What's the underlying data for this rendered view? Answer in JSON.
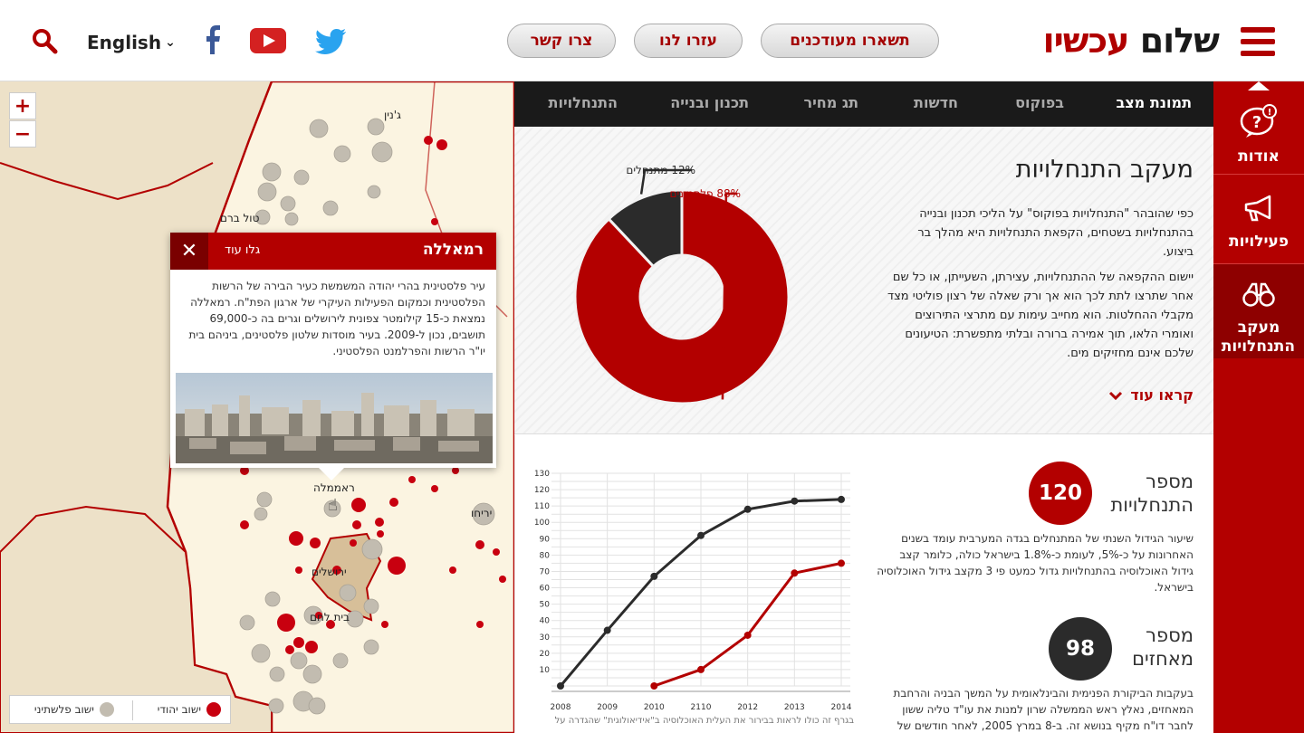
{
  "header": {
    "logo_part1": "שלום",
    "logo_part2": "עכשיו",
    "buttons": [
      "תשארו מעודכנים",
      "עזרו לנו",
      "צרו קשר"
    ],
    "language": "English",
    "icons": [
      "search-icon",
      "facebook-icon",
      "youtube-icon",
      "twitter-icon",
      "hamburger-menu-icon"
    ]
  },
  "tabs": {
    "items": [
      "תמונת מצב",
      "בפוקוס",
      "חדשות",
      "תג מחיר",
      "תכנון ובנייה",
      "התנחלויות"
    ],
    "active": "תמונת מצב"
  },
  "sidebar": {
    "items": [
      {
        "label": "אודות",
        "icon": "question-bubble-icon"
      },
      {
        "label": "פעילויות",
        "icon": "megaphone-icon"
      },
      {
        "label": "מעקב התנחלויות",
        "icon": "binoculars-icon"
      }
    ],
    "active": "מעקב התנחלויות"
  },
  "map": {
    "labels": {
      "jenin": "ג'נין",
      "tulkarm": "טול ברם",
      "jericho": "יריחו",
      "jerusalem": "ירושלים",
      "bethlehem": "בית לחם",
      "ramallah_marker": "ראממלה"
    },
    "popup": {
      "title": "רמאללה",
      "more": "גלו עוד",
      "text": "עיר פלסטינית בהרי יהודה המשמשת כעיר הבירה של הרשות הפלסטינית וכמקום הפעילות העיקרי של ארגון הפת\"ח. רמאללה נמצאת כ-15 קילומטר צפונית לירושלים וגרים בה כ-69,000 תושבים, נכון ל-2009. בעיר מוסדות שלטון פלסטינים, ביניהם בית יו\"ר הרשות והפרלמנט הפלסטיני."
    },
    "legend": {
      "jewish": "ישוב יהודי",
      "palestinian": "ישוב פלשתיני"
    },
    "colors": {
      "jewish": "#c8000f",
      "palestinian": "#c2bcb0"
    }
  },
  "overview": {
    "title": "מעקב התנחלויות",
    "paragraph1": "כפי שהובהר \"התנחלויות בפוקוס\" על הליכי תכנון ובנייה בהתנחלויות בשטחים, הקפאת התנחלויות היא מהלך בר ביצוע.",
    "paragraph2": "יישום ההקפאה של ההתנחלויות, עצירתן, השעייתן, או כל שם אחר שתרצו לתת לכך הוא אך ורק שאלה של רצון פוליטי מצד מקבלי ההחלטות. הוא מחייב עימות עם מתרצי התירוצים ואומרי הלאו, תוך אמירה ברורה ובלתי מתפשרת: הטיעונים שלכם אינם מחזיקים מים.",
    "read_more": "קראו עוד"
  },
  "stats": [
    {
      "title_line1": "מספר",
      "title_line2": "התנחלויות",
      "value": "120",
      "color": "#b30000",
      "desc": "שיעור הגידול השנתי של המתנחלים בגדה המערבית עומד בשנים האחרונות על כ-5%, לעומת כ-1.8% בישראל כולה, כלומר קצב גידול האוכלוסיה בהתנחלויות גדול כמעט פי 3 מקצב גידול האוכלוסיה בישראל."
    },
    {
      "title_line1": "מספר",
      "title_line2": "מאחזים",
      "value": "98",
      "color": "#2b2b2b",
      "desc": "בעקבות הביקורת הפנימית והבינלאומית על המשך הבניה והרחבת המאחזים, נאלץ ראש הממשלה שרון למנות את עו\"ד טליה ששון לחבר דו\"ח מקיף בנושא זה. ב-8 במרץ 2005, לאחר חודשים של"
    }
  ],
  "chart_note": "בגרף זה כולו לראות בבירור את העלית האוכלוסיה ב\"אידיאולוגית\" שהגדרה על",
  "chart_data": [
    {
      "type": "pie",
      "labels": [
        "מתנחלים",
        "פלסטינים"
      ],
      "values": [
        12,
        88
      ],
      "label_texts": [
        "12% מתנחלים",
        "88% פלסטינים"
      ],
      "colors": [
        "#2b2b2b",
        "#b30000"
      ],
      "donut": true
    },
    {
      "type": "line",
      "x": [
        "2008",
        "2009",
        "2010",
        "2110",
        "2012",
        "2013",
        "2014"
      ],
      "series": [
        {
          "values": [
            0,
            34,
            67,
            92,
            108,
            113,
            114
          ],
          "color": "#2b2b2b"
        },
        {
          "values": [
            null,
            null,
            0,
            10,
            31,
            69,
            75
          ],
          "color": "#b30000"
        }
      ],
      "yticks": [
        10,
        20,
        30,
        40,
        50,
        60,
        70,
        80,
        90,
        100,
        110,
        120,
        130
      ],
      "ylim": [
        0,
        130
      ],
      "grid": true
    }
  ]
}
